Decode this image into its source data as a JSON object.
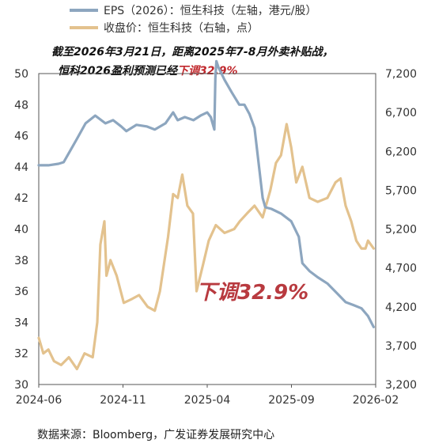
{
  "chart_data": {
    "type": "line",
    "legend": [
      {
        "name": "EPS（2026）：恒生科技（左轴，港元/股）",
        "color": "#8da6bf"
      },
      {
        "name": "收盘价：恒生科技（右轴，点）",
        "color": "#e3c28e"
      }
    ],
    "annotation_line1": "截至2026年3月21日，距离2025年7-8月外卖补贴战，",
    "annotation_line2_prefix": "恒科2026盈利预测已经",
    "annotation_line2_red": "下调32.9%",
    "big_label": "下调32.9%",
    "source": "数据来源：Bloomberg，广发证券发展研究中心",
    "x_tick_labels": [
      "2024-06",
      "2024-11",
      "2025-04",
      "2025-09",
      "2026-02"
    ],
    "y_left": {
      "ticks": [
        30,
        32,
        34,
        36,
        38,
        40,
        42,
        44,
        46,
        48,
        50
      ],
      "ylim": [
        30,
        50
      ]
    },
    "y_right": {
      "ticks": [
        "3,200",
        "3,700",
        "4,200",
        "4,700",
        "5,200",
        "5,700",
        "6,200",
        "6,700",
        "7,200"
      ],
      "ylim": [
        3200,
        7200
      ]
    },
    "xlim": [
      "2024-06-01",
      "2026-03-25"
    ],
    "series": [
      {
        "name": "EPS（2026）：恒生科技（左轴，港元/股）",
        "axis": "left",
        "color": "#8da6bf",
        "points": [
          [
            "2024-06-01",
            44.1
          ],
          [
            "2024-06-20",
            44.1
          ],
          [
            "2024-07-10",
            44.2
          ],
          [
            "2024-07-20",
            44.3
          ],
          [
            "2024-08-01",
            45.0
          ],
          [
            "2024-08-15",
            45.8
          ],
          [
            "2024-09-01",
            46.8
          ],
          [
            "2024-09-20",
            47.3
          ],
          [
            "2024-10-10",
            46.8
          ],
          [
            "2024-10-25",
            47.0
          ],
          [
            "2024-11-10",
            46.6
          ],
          [
            "2024-11-20",
            46.3
          ],
          [
            "2024-12-10",
            46.7
          ],
          [
            "2024-12-30",
            46.6
          ],
          [
            "2025-01-15",
            46.4
          ],
          [
            "2025-02-05",
            46.8
          ],
          [
            "2025-02-20",
            47.5
          ],
          [
            "2025-03-01",
            47.0
          ],
          [
            "2025-03-15",
            47.2
          ],
          [
            "2025-04-01",
            47.0
          ],
          [
            "2025-04-15",
            47.3
          ],
          [
            "2025-04-28",
            47.5
          ],
          [
            "2025-05-05",
            47.2
          ],
          [
            "2025-05-12",
            46.4
          ],
          [
            "2025-05-14",
            49.7
          ],
          [
            "2025-05-16",
            50.8
          ],
          [
            "2025-05-20",
            50.4
          ],
          [
            "2025-06-01",
            49.6
          ],
          [
            "2025-06-15",
            48.8
          ],
          [
            "2025-06-30",
            48.0
          ],
          [
            "2025-07-10",
            48.0
          ],
          [
            "2025-07-20",
            47.4
          ],
          [
            "2025-07-30",
            46.5
          ],
          [
            "2025-08-05",
            44.8
          ],
          [
            "2025-08-15",
            42.0
          ],
          [
            "2025-08-20",
            41.4
          ],
          [
            "2025-09-01",
            41.3
          ],
          [
            "2025-09-20",
            41.0
          ],
          [
            "2025-10-10",
            40.5
          ],
          [
            "2025-10-25",
            39.5
          ],
          [
            "2025-11-01",
            37.8
          ],
          [
            "2025-11-15",
            37.3
          ],
          [
            "2025-12-01",
            36.9
          ],
          [
            "2025-12-20",
            36.5
          ],
          [
            "2026-01-10",
            35.8
          ],
          [
            "2026-01-25",
            35.3
          ],
          [
            "2026-02-10",
            35.1
          ],
          [
            "2026-02-25",
            34.9
          ],
          [
            "2026-03-10",
            34.4
          ],
          [
            "2026-03-21",
            33.7
          ]
        ]
      },
      {
        "name": "收盘价：恒生科技（右轴，点）",
        "axis": "right",
        "color": "#e3c28e",
        "points": [
          [
            "2024-06-01",
            3800
          ],
          [
            "2024-06-10",
            3600
          ],
          [
            "2024-06-20",
            3650
          ],
          [
            "2024-07-01",
            3500
          ],
          [
            "2024-07-15",
            3450
          ],
          [
            "2024-07-30",
            3550
          ],
          [
            "2024-08-15",
            3400
          ],
          [
            "2024-08-30",
            3600
          ],
          [
            "2024-09-15",
            3550
          ],
          [
            "2024-09-24",
            4000
          ],
          [
            "2024-09-30",
            5000
          ],
          [
            "2024-10-08",
            5300
          ],
          [
            "2024-10-12",
            4600
          ],
          [
            "2024-10-20",
            4800
          ],
          [
            "2024-11-01",
            4600
          ],
          [
            "2024-11-15",
            4250
          ],
          [
            "2024-12-01",
            4300
          ],
          [
            "2024-12-15",
            4350
          ],
          [
            "2025-01-01",
            4200
          ],
          [
            "2025-01-15",
            4150
          ],
          [
            "2025-01-25",
            4400
          ],
          [
            "2025-02-10",
            5100
          ],
          [
            "2025-02-20",
            5650
          ],
          [
            "2025-03-01",
            5600
          ],
          [
            "2025-03-10",
            5900
          ],
          [
            "2025-03-20",
            5500
          ],
          [
            "2025-03-31",
            5400
          ],
          [
            "2025-04-07",
            4400
          ],
          [
            "2025-04-20",
            4750
          ],
          [
            "2025-05-01",
            5050
          ],
          [
            "2025-05-15",
            5250
          ],
          [
            "2025-06-01",
            5150
          ],
          [
            "2025-06-20",
            5200
          ],
          [
            "2025-07-01",
            5300
          ],
          [
            "2025-07-15",
            5400
          ],
          [
            "2025-07-30",
            5500
          ],
          [
            "2025-08-15",
            5350
          ],
          [
            "2025-08-30",
            5700
          ],
          [
            "2025-09-10",
            6050
          ],
          [
            "2025-09-20",
            6150
          ],
          [
            "2025-10-01",
            6550
          ],
          [
            "2025-10-10",
            6250
          ],
          [
            "2025-10-20",
            5800
          ],
          [
            "2025-11-01",
            6000
          ],
          [
            "2025-11-15",
            5600
          ],
          [
            "2025-12-01",
            5550
          ],
          [
            "2025-12-20",
            5600
          ],
          [
            "2026-01-05",
            5800
          ],
          [
            "2026-01-15",
            5850
          ],
          [
            "2026-01-25",
            5500
          ],
          [
            "2026-02-05",
            5300
          ],
          [
            "2026-02-15",
            5050
          ],
          [
            "2026-02-25",
            4950
          ],
          [
            "2026-03-05",
            4950
          ],
          [
            "2026-03-10",
            5050
          ],
          [
            "2026-03-21",
            4950
          ]
        ]
      }
    ]
  }
}
